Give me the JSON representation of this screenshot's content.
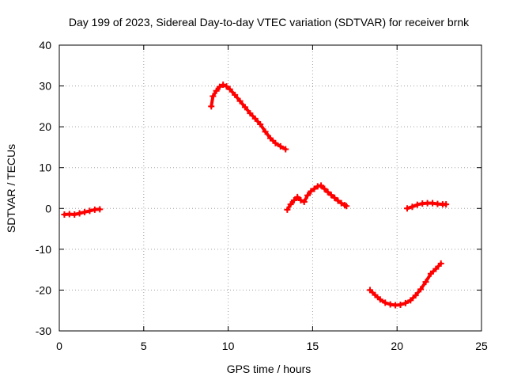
{
  "chart_data": {
    "type": "scatter",
    "title": "Day 199 of 2023, Sidereal Day-to-day VTEC variation (SDTVAR) for receiver brnk",
    "xlabel": "GPS time / hours",
    "ylabel": "SDTVAR / TECUs",
    "xlim": [
      0,
      25
    ],
    "ylim": [
      -30,
      40
    ],
    "xticks": [
      0,
      5,
      10,
      15,
      20,
      25
    ],
    "yticks": [
      -30,
      -20,
      -10,
      0,
      10,
      20,
      30,
      40
    ],
    "grid": true,
    "series_color": "#ff0000",
    "series": [
      {
        "x": [
          0.3,
          0.6,
          0.9,
          1.2,
          1.5,
          1.8,
          2.1,
          2.4
        ],
        "values": [
          -1.5,
          -1.4,
          -1.5,
          -1.2,
          -0.9,
          -0.6,
          -0.3,
          -0.2
        ]
      },
      {
        "x": [
          9.0,
          9.1,
          9.3,
          9.5,
          9.7,
          9.9,
          10.1,
          10.4,
          10.7,
          11.0,
          11.3,
          11.6,
          11.9,
          12.2,
          12.5,
          12.8,
          13.1,
          13.4
        ],
        "values": [
          25.0,
          27.5,
          28.8,
          29.8,
          30.3,
          29.9,
          29.2,
          27.8,
          26.3,
          24.8,
          23.3,
          22.0,
          20.6,
          18.8,
          17.2,
          16.0,
          15.2,
          14.5
        ]
      },
      {
        "x": [
          13.5,
          13.7,
          13.9,
          14.1,
          14.3,
          14.5,
          14.7,
          14.9,
          15.1,
          15.3,
          15.5,
          15.7,
          15.9,
          16.1,
          16.3,
          16.5,
          16.7,
          16.9,
          17.0
        ],
        "values": [
          -0.3,
          1.0,
          2.0,
          2.8,
          2.0,
          1.6,
          3.2,
          4.2,
          4.8,
          5.4,
          5.6,
          4.8,
          4.0,
          3.3,
          2.6,
          1.9,
          1.3,
          0.8,
          0.6
        ]
      },
      {
        "x": [
          18.4,
          18.7,
          19.0,
          19.3,
          19.6,
          19.9,
          20.2,
          20.5,
          20.8,
          21.1,
          21.4,
          21.7,
          22.0,
          22.3,
          22.6
        ],
        "values": [
          -20.0,
          -21.2,
          -22.3,
          -23.1,
          -23.5,
          -23.7,
          -23.6,
          -23.2,
          -22.5,
          -21.3,
          -19.8,
          -18.0,
          -16.0,
          -14.8,
          -13.5
        ]
      },
      {
        "x": [
          20.6,
          20.9,
          21.2,
          21.5,
          21.8,
          22.1,
          22.4,
          22.7,
          22.9
        ],
        "values": [
          0.0,
          0.4,
          0.9,
          1.2,
          1.3,
          1.3,
          1.1,
          1.0,
          1.0
        ]
      }
    ]
  }
}
